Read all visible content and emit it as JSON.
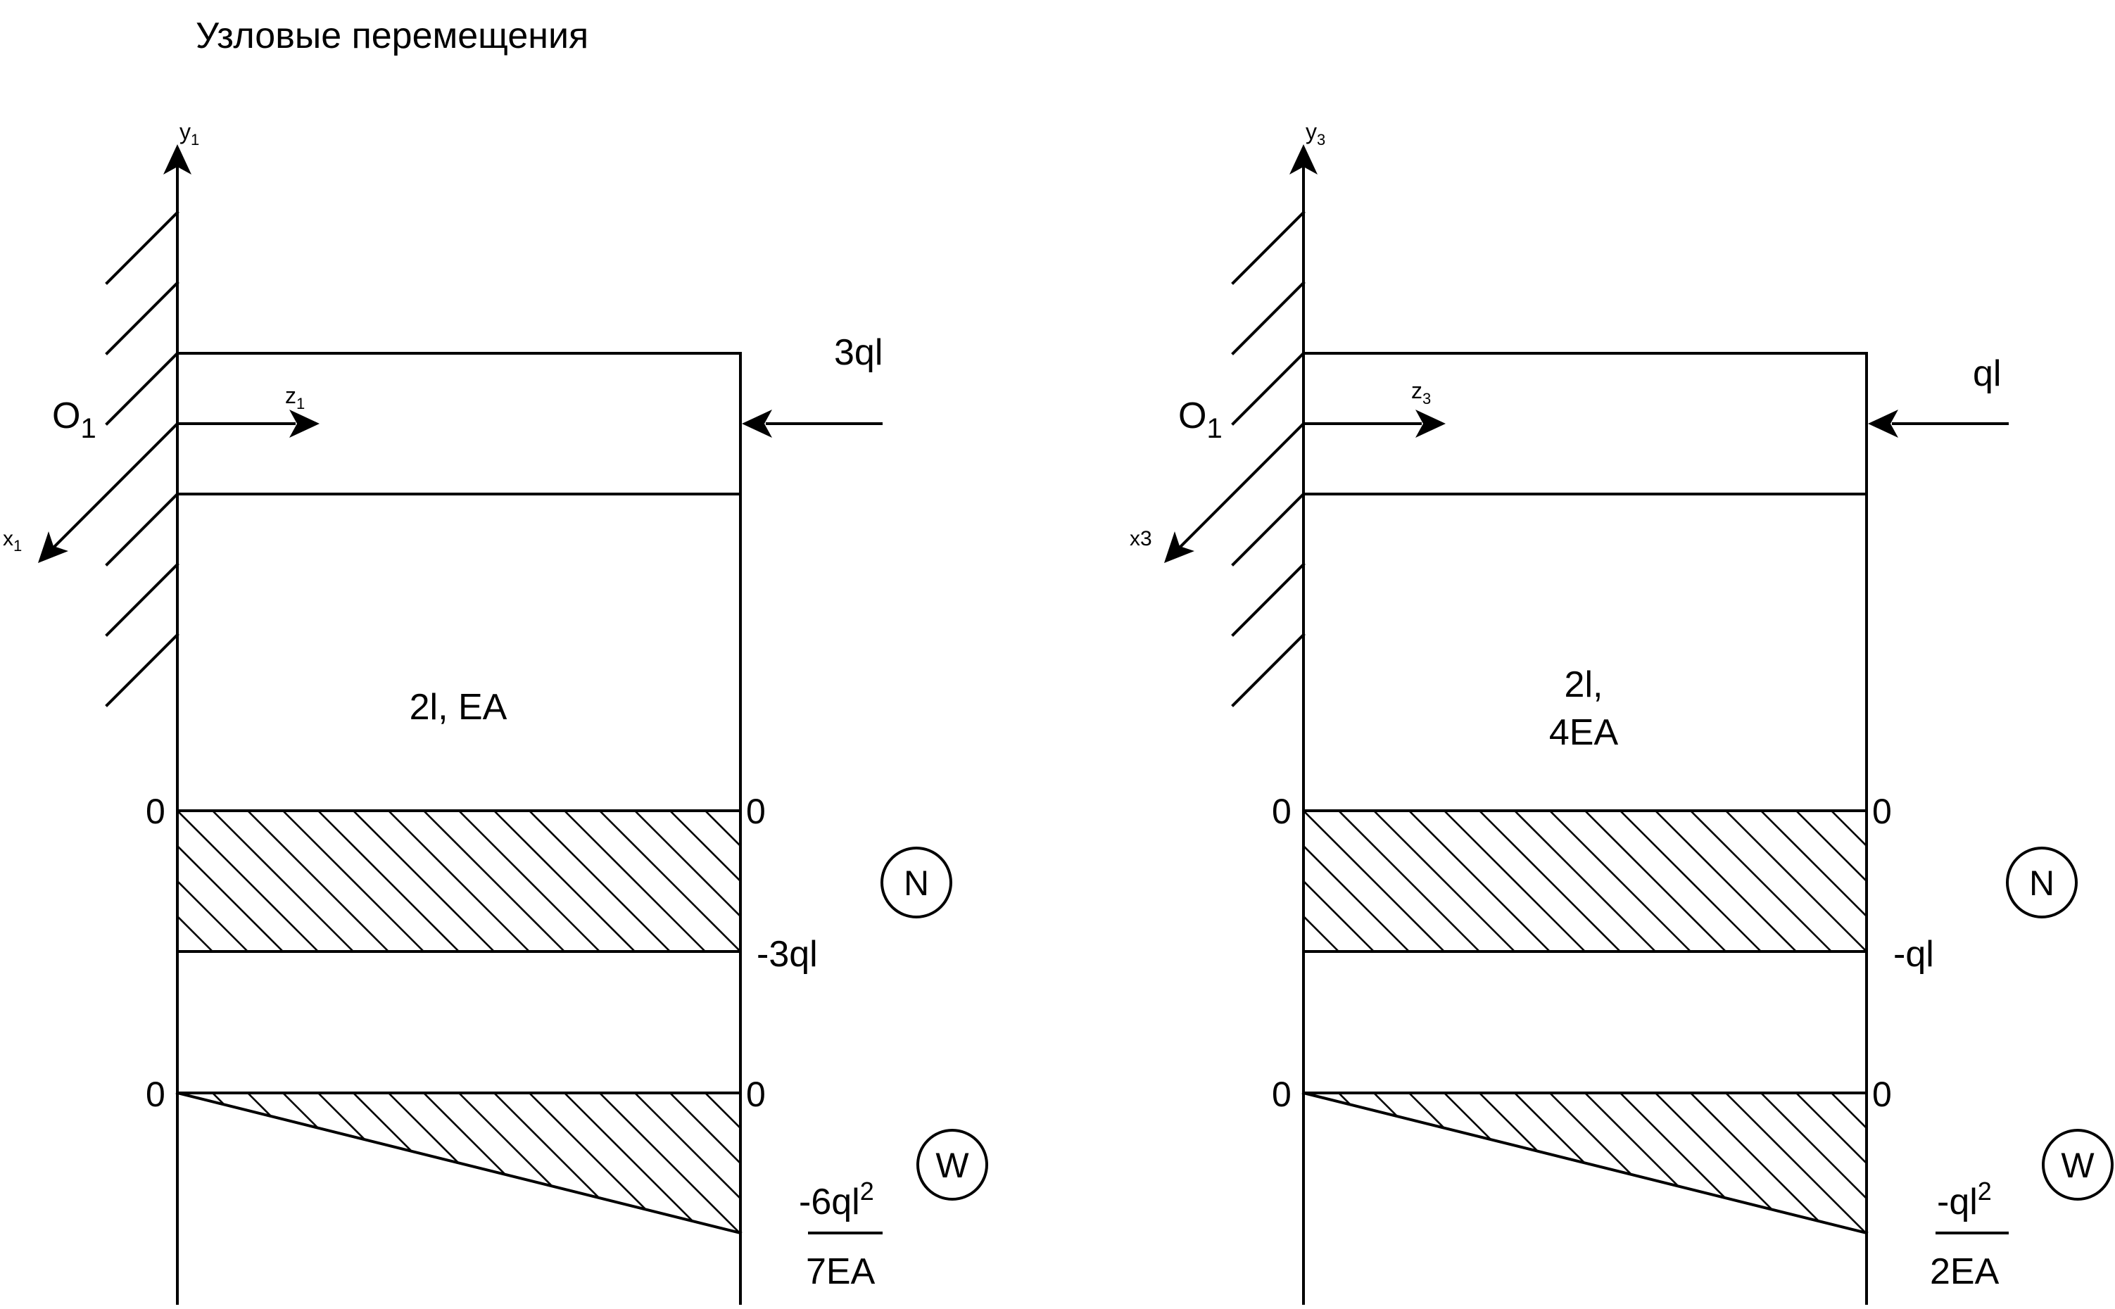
{
  "title": "Узловые перемещения",
  "panels": [
    {
      "id": "left",
      "axis_y": {
        "main": "y",
        "sub": "1"
      },
      "axis_x": {
        "main": "x",
        "sub": "1"
      },
      "axis_z": {
        "main": "z",
        "sub": "1"
      },
      "origin": {
        "main": "O",
        "sub": "1"
      },
      "force_label": "3ql",
      "element_label": [
        "2l, EA"
      ],
      "N": {
        "badge": "N",
        "left_top": "0",
        "right_top": "0",
        "right_bottom": "-3ql"
      },
      "W": {
        "badge": "W",
        "left_top": "0",
        "right_top": "0",
        "fraction_numerator": "-6ql",
        "fraction_power": "2",
        "fraction_denominator": "7EA"
      }
    },
    {
      "id": "right",
      "axis_y": {
        "main": "y",
        "sub": "3"
      },
      "axis_x": {
        "main": "x3",
        "sub": ""
      },
      "axis_z": {
        "main": "z",
        "sub": "3"
      },
      "origin": {
        "main": "O",
        "sub": "1"
      },
      "force_label": "ql",
      "element_label": [
        "2l,",
        "4EA"
      ],
      "N": {
        "badge": "N",
        "left_top": "0",
        "right_top": "0",
        "right_bottom": "-ql"
      },
      "W": {
        "badge": "W",
        "left_top": "0",
        "right_top": "0",
        "fraction_numerator": "-ql",
        "fraction_power": "2",
        "fraction_denominator": "2EA"
      }
    }
  ]
}
